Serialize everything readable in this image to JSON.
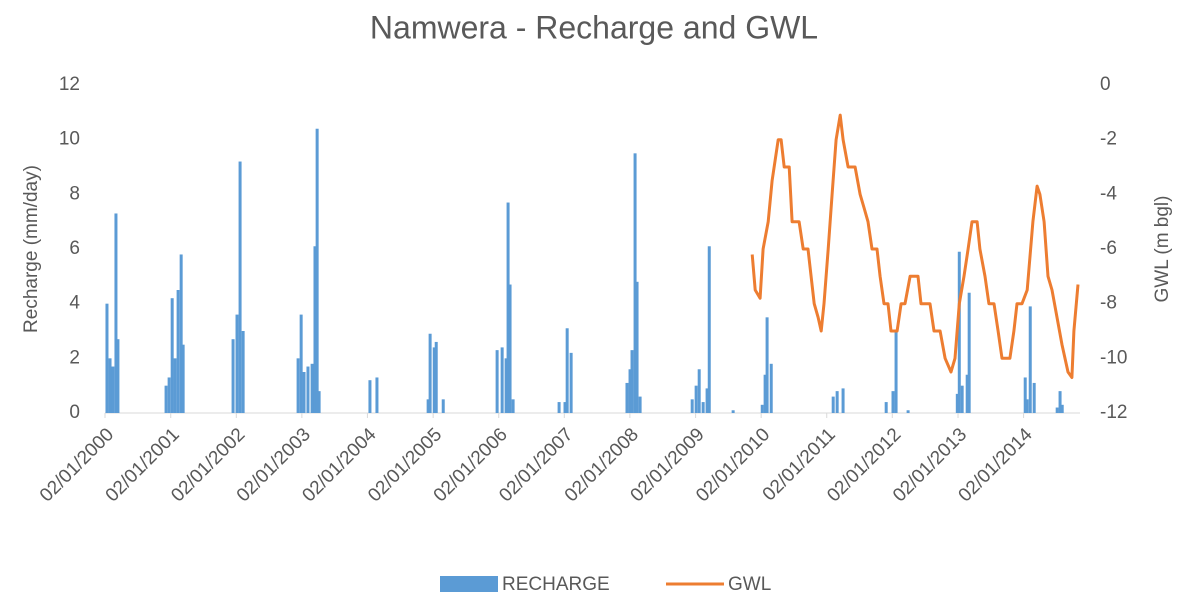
{
  "chart_data": {
    "type": "combo",
    "title": "Namwera - Recharge and GWL",
    "y_label": "Recharge (mm/day)",
    "y2_label": "GWL (m bgl)",
    "legend": "bottom",
    "xlim": [
      "02/01/2000",
      "12/11/2014"
    ],
    "xticks": [
      "02/01/2000",
      "02/01/2001",
      "02/01/2002",
      "02/01/2003",
      "02/01/2004",
      "02/01/2005",
      "02/01/2006",
      "02/01/2007",
      "02/01/2008",
      "02/01/2009",
      "02/01/2010",
      "02/01/2011",
      "02/01/2012",
      "02/01/2013",
      "02/01/2014"
    ],
    "ylim": [
      0,
      12
    ],
    "yticks": [
      0,
      2,
      4,
      6,
      8,
      10,
      12
    ],
    "y2lim": [
      -12,
      0
    ],
    "y2ticks": [
      -12,
      -10,
      -8,
      -6,
      -4,
      -2,
      0
    ],
    "series": [
      {
        "name": "RECHARGE",
        "type": "bar",
        "color": "#5b9bd5",
        "x": [
          "13/01/2000",
          "30/01/2000",
          "15/02/2000",
          "03/03/2000",
          "14/03/2000",
          "07/12/2000",
          "24/12/2000",
          "10/01/2001",
          "26/01/2001",
          "12/02/2001",
          "01/03/2001",
          "12/03/2001",
          "15/12/2001",
          "06/01/2002",
          "23/01/2002",
          "09/02/2002",
          "12/12/2002",
          "29/12/2002",
          "14/01/2003",
          "05/02/2003",
          "28/02/2003",
          "16/03/2003",
          "28/03/2003",
          "08/04/2003",
          "16/01/2004",
          "24/02/2004",
          "05/12/2004",
          "16/12/2004",
          "08/01/2005",
          "19/01/2005",
          "27/02/2005",
          "24/12/2005",
          "21/01/2006",
          "12/02/2006",
          "23/02/2006",
          "06/03/2006",
          "23/03/2006",
          "04/12/2006",
          "06/01/2007",
          "18/01/2007",
          "09/02/2007",
          "17/12/2007",
          "03/01/2008",
          "14/01/2008",
          "31/01/2008",
          "11/02/2008",
          "28/02/2008",
          "14/12/2008",
          "05/01/2009",
          "22/01/2009",
          "13/02/2009",
          "07/03/2009",
          "19/03/2009",
          "30/07/2009",
          "08/01/2010",
          "24/01/2010",
          "04/02/2010",
          "27/02/2010",
          "07/02/2011",
          "01/03/2011",
          "03/04/2011",
          "29/11/2011",
          "06/01/2012",
          "23/01/2012",
          "30/03/2012",
          "29/12/2012",
          "09/01/2013",
          "25/01/2013",
          "22/02/2013",
          "05/03/2013",
          "11/01/2014",
          "22/01/2014",
          "08/02/2014",
          "02/03/2014",
          "08/07/2014",
          "24/07/2014",
          "05/08/2014"
        ],
        "values": [
          4.0,
          2.0,
          1.7,
          7.3,
          2.7,
          1.0,
          1.3,
          4.2,
          2.0,
          4.5,
          5.8,
          2.5,
          2.7,
          3.6,
          9.2,
          3.0,
          2.0,
          3.6,
          1.5,
          1.7,
          1.8,
          6.1,
          10.4,
          0.8,
          1.2,
          1.3,
          0.5,
          2.9,
          2.4,
          2.6,
          0.5,
          2.3,
          2.4,
          2.0,
          7.7,
          4.7,
          0.5,
          0.4,
          0.4,
          3.1,
          2.2,
          1.1,
          1.6,
          2.3,
          9.5,
          4.8,
          0.6,
          0.5,
          1.0,
          1.6,
          0.4,
          0.9,
          6.1,
          0.1,
          0.3,
          1.4,
          3.5,
          1.8,
          0.6,
          0.8,
          0.9,
          0.4,
          0.8,
          3.0,
          0.1,
          0.7,
          5.9,
          1.0,
          1.4,
          4.4,
          1.3,
          0.5,
          3.9,
          1.1,
          0.2,
          0.8,
          0.3
        ]
      },
      {
        "name": "GWL",
        "type": "line",
        "axis": "y2",
        "color": "#ed7d31",
        "x": [
          "13/11/2009",
          "30/11/2009",
          "27/12/2009",
          "13/01/2010",
          "10/02/2010",
          "04/03/2010",
          "07/04/2010",
          "23/04/2010",
          "10/05/2010",
          "07/06/2010",
          "23/06/2010",
          "01/08/2010",
          "24/08/2010",
          "20/09/2010",
          "24/10/2010",
          "15/11/2010",
          "02/12/2010",
          "18/12/2010",
          "10/01/2011",
          "01/02/2011",
          "23/02/2011",
          "18/03/2011",
          "03/04/2011",
          "01/05/2011",
          "09/06/2011",
          "07/07/2011",
          "29/07/2011",
          "20/08/2011",
          "11/09/2011",
          "09/10/2011",
          "26/10/2011",
          "17/11/2011",
          "09/12/2011",
          "26/12/2011",
          "29/01/2012",
          "20/02/2012",
          "13/03/2012",
          "10/04/2012",
          "24/05/2012",
          "10/06/2012",
          "30/07/2012",
          "21/08/2012",
          "24/09/2012",
          "22/10/2012",
          "24/11/2012",
          "16/12/2012",
          "09/01/2013",
          "04/02/2013",
          "27/02/2013",
          "21/03/2013",
          "18/04/2013",
          "04/05/2013",
          "01/06/2013",
          "23/06/2013",
          "21/07/2013",
          "13/08/2013",
          "04/09/2013",
          "18/10/2013",
          "09/11/2013",
          "26/11/2013",
          "24/12/2013",
          "22/01/2014",
          "23/02/2014",
          "18/03/2014",
          "03/04/2014",
          "26/04/2014",
          "18/05/2014",
          "09/06/2014",
          "07/07/2014",
          "04/08/2014",
          "06/09/2014",
          "28/09/2014",
          "09/10/2014",
          "01/11/2014"
        ],
        "values": [
          -6.2,
          -7.5,
          -7.8,
          -6,
          -5,
          -3.5,
          -2,
          -2,
          -3,
          -3,
          -5,
          -5,
          -6,
          -6,
          -8,
          -8.5,
          -9,
          -8,
          -6,
          -4,
          -2,
          -1.1,
          -2,
          -3,
          -3,
          -4,
          -4.5,
          -5,
          -6,
          -6,
          -7,
          -8,
          -8,
          -9,
          -9,
          -8,
          -8,
          -7,
          -7,
          -8,
          -8,
          -9,
          -9,
          -10,
          -10.5,
          -10,
          -8,
          -7,
          -6,
          -5,
          -5,
          -6,
          -7,
          -8,
          -8,
          -9,
          -10,
          -10,
          -9,
          -8,
          -8,
          -7.5,
          -5,
          -3.7,
          -4,
          -5,
          -7,
          -7.5,
          -8.5,
          -9.5,
          -10.5,
          -10.7,
          -9,
          -7.3
        ]
      }
    ]
  }
}
